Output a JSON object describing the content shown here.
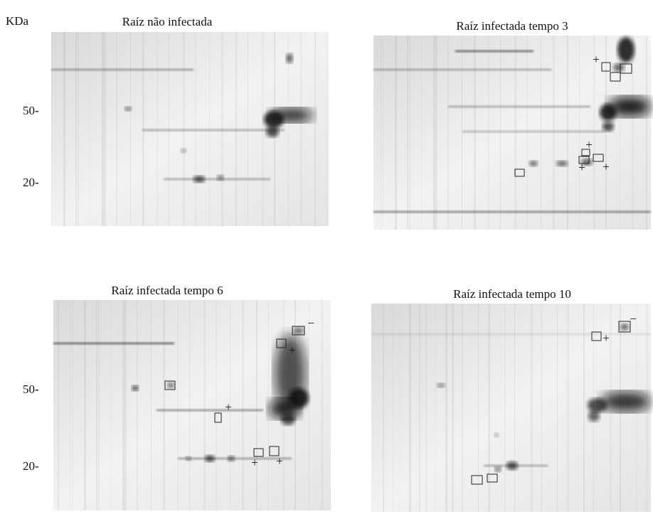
{
  "unit_label": "KDa",
  "panels": [
    {
      "title": "Raíz não infectada",
      "ticks": [
        "50-",
        "20-"
      ],
      "markers": []
    },
    {
      "title": "Raíz infectada tempo 3",
      "ticks": [],
      "markers": [
        "+",
        "+",
        "+",
        "+"
      ]
    },
    {
      "title": "Raíz infectada tempo 6",
      "ticks": [
        "50-",
        "20-"
      ],
      "markers": [
        "−",
        "+",
        "+",
        "+",
        "+"
      ]
    },
    {
      "title": "Raíz infectada tempo 10",
      "ticks": [],
      "markers": [
        "−",
        "+"
      ]
    }
  ]
}
